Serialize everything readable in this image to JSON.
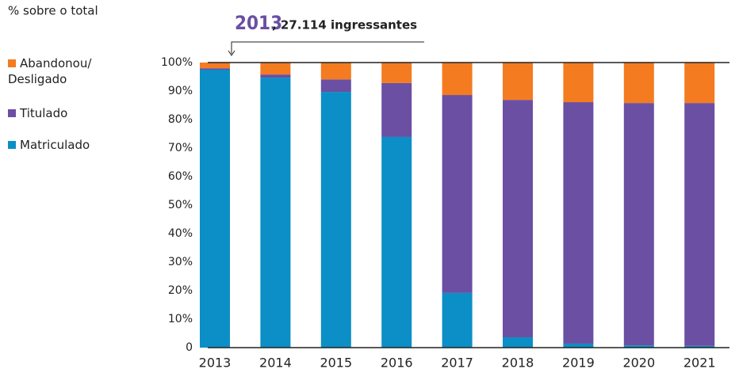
{
  "chart_data": {
    "type": "stacked_bar",
    "subtitle": "% sobre o total",
    "annotation": {
      "year": "2013",
      "text": ", 27.114 ingressantes"
    },
    "categories": [
      "2013",
      "2014",
      "2015",
      "2016",
      "2017",
      "2018",
      "2019",
      "2020",
      "2021"
    ],
    "series": [
      {
        "name": "Matriculado",
        "color": "#0b8fc6",
        "values": [
          97.5,
          94.7,
          89.7,
          73.9,
          19.2,
          3.6,
          1.4,
          0.8,
          0.6
        ]
      },
      {
        "name": "Titulado",
        "color": "#6a4fa3",
        "values": [
          0.5,
          1.1,
          4.4,
          18.9,
          69.4,
          83.3,
          84.7,
          85.0,
          85.2
        ]
      },
      {
        "name": "Abandonou/ Desligado",
        "color": "#f47b20",
        "values": [
          2.0,
          4.2,
          5.9,
          7.2,
          11.4,
          13.1,
          13.9,
          14.2,
          14.2
        ]
      }
    ],
    "ylim": [
      0,
      100
    ],
    "yticks": [
      0,
      {
        "value": 10,
        "label": "10%"
      },
      {
        "value": 20,
        "label": "20%"
      },
      {
        "value": 30,
        "label": "30%"
      },
      {
        "value": 40,
        "label": "40%"
      },
      {
        "value": 50,
        "label": "50%"
      },
      {
        "value": 60,
        "label": "60%"
      },
      {
        "value": 70,
        "label": "70%"
      },
      {
        "value": 80,
        "label": "80%"
      },
      {
        "value": 90,
        "label": "90%"
      },
      {
        "value": 100,
        "label": "100%"
      }
    ],
    "grid": false
  }
}
